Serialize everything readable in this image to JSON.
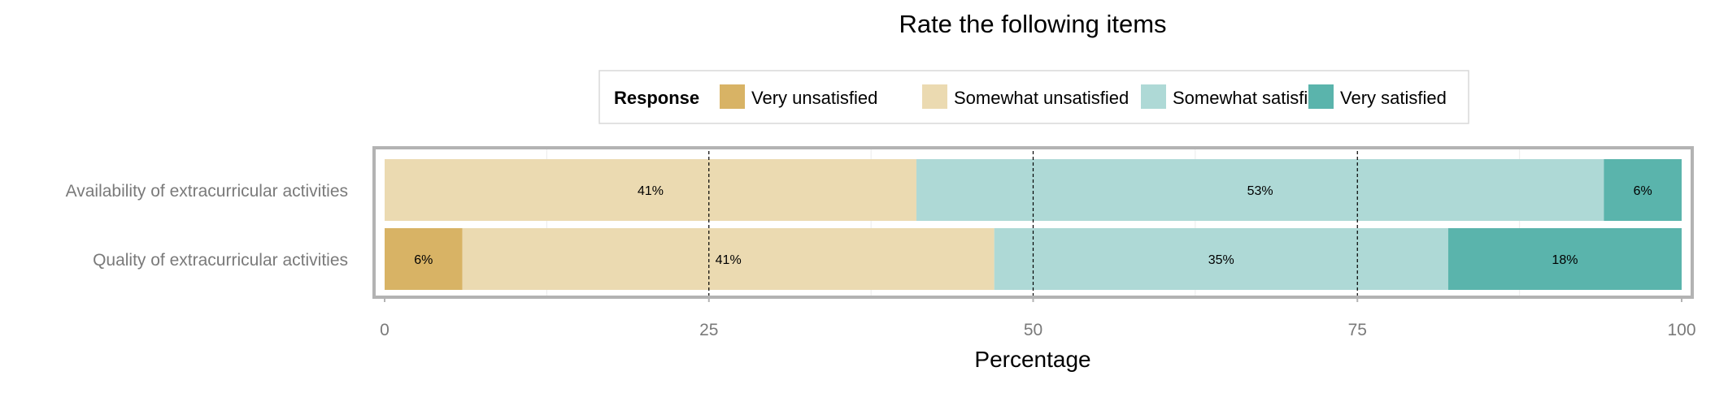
{
  "chart_data": {
    "type": "bar",
    "orientation": "horizontal",
    "stacked": true,
    "title": "Rate the following items",
    "xlabel": "Percentage",
    "ylabel": "",
    "xlim": [
      0,
      100
    ],
    "x_ticks": [
      0,
      25,
      50,
      75,
      100
    ],
    "reference_lines": [
      25,
      50,
      75
    ],
    "legend": {
      "title": "Response",
      "placement": "top-center",
      "entries": [
        "Very unsatisfied",
        "Somewhat unsatisfied",
        "Somewhat satisfied",
        "Very satisfied"
      ]
    },
    "categories": [
      "Availability of extracurricular activities",
      "Quality of extracurricular activities"
    ],
    "series": [
      {
        "name": "Very unsatisfied",
        "color": "#d8b365",
        "values": [
          0,
          6
        ]
      },
      {
        "name": "Somewhat unsatisfied",
        "color": "#ebdab1",
        "values": [
          41,
          41
        ]
      },
      {
        "name": "Somewhat satisfied",
        "color": "#aed9d6",
        "values": [
          53,
          35
        ]
      },
      {
        "name": "Very satisfied",
        "color": "#5ab4ac",
        "values": [
          6,
          18
        ]
      }
    ],
    "data_labels": [
      [
        "",
        "41%",
        "53%",
        "6%"
      ],
      [
        "6%",
        "41%",
        "35%",
        "18%"
      ]
    ]
  }
}
